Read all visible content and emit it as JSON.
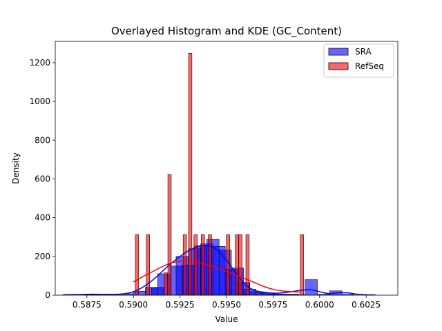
{
  "chart_data": {
    "type": "bar",
    "title": "Overlayed Histogram and KDE (GC_Content)",
    "xlabel": "Value",
    "ylabel": "Density",
    "xlim": [
      0.5858,
      0.6042
    ],
    "ylim": [
      0,
      1310
    ],
    "xticks": [
      0.5875,
      0.59,
      0.5925,
      0.595,
      0.5975,
      0.6,
      0.6025
    ],
    "xtick_labels": [
      "0.5875",
      "0.5900",
      "0.5925",
      "0.5950",
      "0.5975",
      "0.6000",
      "0.6025"
    ],
    "yticks": [
      0,
      200,
      400,
      600,
      800,
      1000,
      1200
    ],
    "ytick_labels": [
      "0",
      "200",
      "400",
      "600",
      "800",
      "1000",
      "1200"
    ],
    "grid": false,
    "legend_position": "top-right",
    "series": [
      {
        "name": "SRA",
        "kind": "histogram",
        "color": "#0000ff",
        "edge": "#000000",
        "opacity": 0.6,
        "bin_width": 0.00066,
        "bins": [
          {
            "x": 0.58767,
            "y": 3
          },
          {
            "x": 0.58833,
            "y": 1
          },
          {
            "x": 0.58899,
            "y": 1
          },
          {
            "x": 0.58965,
            "y": 7
          },
          {
            "x": 0.59031,
            "y": 20
          },
          {
            "x": 0.59097,
            "y": 40
          },
          {
            "x": 0.5913,
            "y": 40
          },
          {
            "x": 0.59163,
            "y": 110
          },
          {
            "x": 0.59229,
            "y": 150
          },
          {
            "x": 0.59262,
            "y": 200
          },
          {
            "x": 0.59295,
            "y": 155
          },
          {
            "x": 0.59328,
            "y": 240
          },
          {
            "x": 0.59361,
            "y": 255
          },
          {
            "x": 0.59394,
            "y": 265
          },
          {
            "x": 0.59427,
            "y": 288
          },
          {
            "x": 0.5946,
            "y": 252
          },
          {
            "x": 0.59493,
            "y": 233
          },
          {
            "x": 0.59526,
            "y": 133
          },
          {
            "x": 0.59559,
            "y": 140
          },
          {
            "x": 0.59592,
            "y": 65
          },
          {
            "x": 0.59625,
            "y": 30
          },
          {
            "x": 0.59658,
            "y": 18
          },
          {
            "x": 0.59691,
            "y": 12
          },
          {
            "x": 0.59724,
            "y": 12
          },
          {
            "x": 0.59757,
            "y": 5
          },
          {
            "x": 0.5979,
            "y": 5
          },
          {
            "x": 0.59823,
            "y": 3
          },
          {
            "x": 0.59856,
            "y": 5
          },
          {
            "x": 0.59889,
            "y": 2
          },
          {
            "x": 0.59955,
            "y": 80
          },
          {
            "x": 0.60021,
            "y": 5
          },
          {
            "x": 0.60087,
            "y": 22
          },
          {
            "x": 0.60153,
            "y": 4
          }
        ],
        "kde": {
          "x": [
            0.5862,
            0.587,
            0.5878,
            0.5885,
            0.5892,
            0.5898,
            0.5903,
            0.5908,
            0.5913,
            0.5918,
            0.5923,
            0.5928,
            0.5933,
            0.5938,
            0.5942,
            0.5946,
            0.595,
            0.5955,
            0.596,
            0.5965,
            0.597,
            0.5975,
            0.598,
            0.5985,
            0.599,
            0.5995,
            0.6,
            0.6005,
            0.601,
            0.6015,
            0.602,
            0.6025,
            0.603
          ],
          "y": [
            2,
            3,
            5,
            4,
            5,
            12,
            30,
            60,
            100,
            145,
            185,
            220,
            245,
            257,
            250,
            225,
            180,
            115,
            55,
            25,
            15,
            10,
            12,
            18,
            25,
            28,
            18,
            8,
            12,
            12,
            5,
            2,
            1
          ]
        }
      },
      {
        "name": "RefSeq",
        "kind": "histogram",
        "color": "#ff0000",
        "edge": "#000000",
        "opacity": 0.6,
        "bin_width": 0.00018,
        "bins": [
          {
            "x": 0.59019,
            "y": 312
          },
          {
            "x": 0.59078,
            "y": 312
          },
          {
            "x": 0.59174,
            "y": 115
          },
          {
            "x": 0.59194,
            "y": 623
          },
          {
            "x": 0.59276,
            "y": 312
          },
          {
            "x": 0.59305,
            "y": 1248
          },
          {
            "x": 0.59334,
            "y": 312
          },
          {
            "x": 0.59373,
            "y": 312
          },
          {
            "x": 0.59411,
            "y": 312
          },
          {
            "x": 0.59508,
            "y": 312
          },
          {
            "x": 0.59556,
            "y": 312
          },
          {
            "x": 0.59575,
            "y": 312
          },
          {
            "x": 0.59613,
            "y": 312
          },
          {
            "x": 0.59905,
            "y": 312
          }
        ],
        "kde": {
          "x": [
            0.59,
            0.5905,
            0.591,
            0.5915,
            0.592,
            0.5925,
            0.593,
            0.5935,
            0.594,
            0.5945,
            0.595,
            0.5955,
            0.596,
            0.5965,
            0.597,
            0.5975,
            0.598,
            0.5985,
            0.599
          ],
          "y": [
            68,
            95,
            120,
            145,
            165,
            175,
            178,
            168,
            155,
            140,
            122,
            105,
            85,
            65,
            45,
            30,
            22,
            18,
            15
          ]
        }
      }
    ]
  }
}
